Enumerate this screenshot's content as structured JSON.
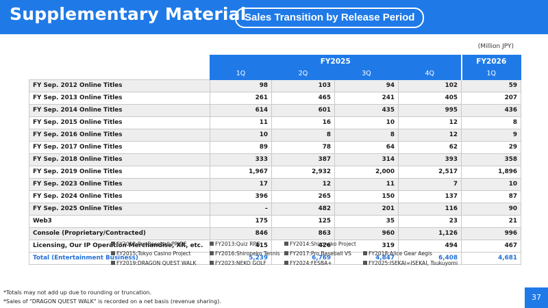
{
  "header": {
    "title": "Supplementary Material",
    "subtitle": "Sales Transition by Release Period"
  },
  "unit_label": "(Million JPY)",
  "table": {
    "fy2025_label": "FY2025",
    "fy2026_label": "FY2026",
    "quarters": [
      "1Q",
      "2Q",
      "3Q",
      "4Q",
      "1Q"
    ],
    "rows": [
      {
        "label": "FY Sep. 2012 Online Titles",
        "values": [
          "98",
          "103",
          "94",
          "102",
          "59"
        ]
      },
      {
        "label": "FY Sep. 2013 Online Titles",
        "values": [
          "261",
          "465",
          "241",
          "405",
          "207"
        ]
      },
      {
        "label": "FY Sep. 2014 Online Titles",
        "values": [
          "614",
          "601",
          "435",
          "995",
          "436"
        ]
      },
      {
        "label": "FY Sep. 2015 Online Titles",
        "values": [
          "11",
          "16",
          "10",
          "12",
          "8"
        ]
      },
      {
        "label": "FY Sep. 2016 Online Titles",
        "values": [
          "10",
          "8",
          "8",
          "12",
          "9"
        ]
      },
      {
        "label": "FY Sep. 2017 Online Titles",
        "values": [
          "89",
          "78",
          "64",
          "62",
          "29"
        ]
      },
      {
        "label": "FY Sep. 2018 Online Titles",
        "values": [
          "333",
          "387",
          "314",
          "393",
          "358"
        ]
      },
      {
        "label": "FY Sep. 2019 Online Titles",
        "values": [
          "1,967",
          "2,932",
          "2,000",
          "2,517",
          "1,896"
        ]
      },
      {
        "label": "FY Sep. 2023 Online Titles",
        "values": [
          "17",
          "12",
          "11",
          "7",
          "10"
        ]
      },
      {
        "label": "FY Sep. 2024 Online Titles",
        "values": [
          "396",
          "265",
          "150",
          "137",
          "87"
        ]
      },
      {
        "label": "FY Sep. 2025 Online Titles",
        "values": [
          "–",
          "482",
          "201",
          "116",
          "90"
        ]
      },
      {
        "label": "Web3",
        "values": [
          "175",
          "125",
          "35",
          "23",
          "21"
        ]
      },
      {
        "label": "Console (Proprietary/Contracted)",
        "values": [
          "846",
          "863",
          "960",
          "1,126",
          "996"
        ]
      },
      {
        "label": "Licensing, Our IP Operation Merchandise, XR, etc.",
        "values": [
          "415",
          "426",
          "319",
          "494",
          "467"
        ]
      }
    ],
    "total": {
      "label": "Total (Entertainment Business)",
      "values": [
        "5,239",
        "6,769",
        "4,847",
        "6,408",
        "4,681"
      ]
    }
  },
  "legend": [
    [
      "FY2012:Pro Baseball PRIDE",
      "FY2013:Quiz RPG",
      "FY2014:Shironeko Project"
    ],
    [
      "FY2015:Tokyo Casino Project",
      "FY2016:Shironeko Tennis",
      "FY2017:Pro Baseball VS",
      "FY2018:Alice Gear Aegis"
    ],
    [
      "FY2019:DRAGON QUEST WALK",
      "FY2023:NEKO GOLF",
      "FY2024:FESBA+",
      "FY2025:ISEKAI∞ISEKAI, Tsukuyomi"
    ]
  ],
  "notes": [
    "*Totals may not add up due to rounding or truncation.",
    "*Sales of \"DRAGON QUEST WALK\" is recorded on a net basis (revenue sharing)."
  ],
  "page_number": "37",
  "colors": {
    "brand_blue": "#1f7ae8",
    "row_alt": "#eeeeee",
    "total_text": "#1f6fd6"
  }
}
